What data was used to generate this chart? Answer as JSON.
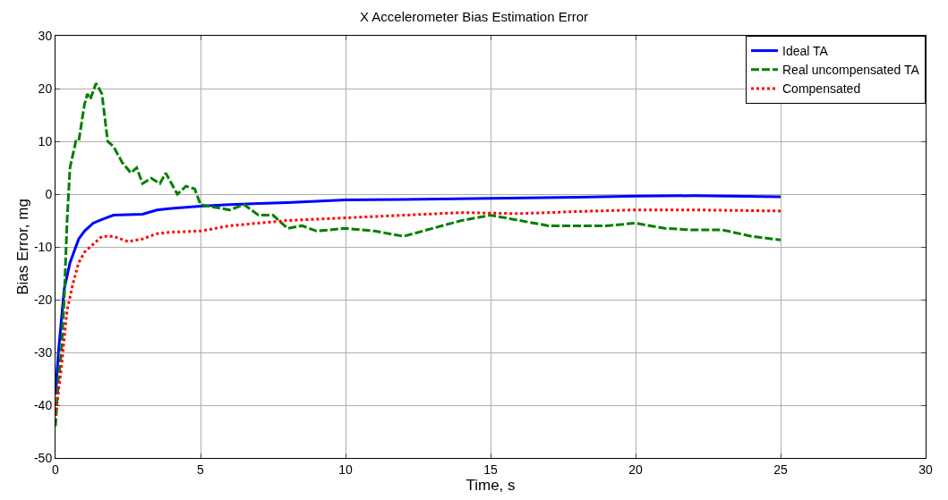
{
  "chart_data": {
    "type": "line",
    "title": "X Accelerometer Bias Estimation Error",
    "xlabel": "Time, s",
    "ylabel": "Bias Error, mg",
    "xlim": [
      0,
      30
    ],
    "xticks": [
      0,
      5,
      10,
      15,
      20,
      25,
      30
    ],
    "ylim": [
      -50,
      30
    ],
    "yticks": [
      -50,
      -40,
      -30,
      -20,
      -10,
      0,
      10,
      20,
      30
    ],
    "grid": true,
    "legend": "top right",
    "marker": "none",
    "series": [
      {
        "name": "Ideal TA",
        "color": "#0000ff",
        "line_style": "solid",
        "x": [
          0,
          0.1,
          0.3,
          0.5,
          0.8,
          1.0,
          1.3,
          1.6,
          2,
          3,
          3.5,
          4,
          5,
          6,
          7,
          8,
          10,
          12,
          15,
          18,
          20,
          22,
          25
        ],
        "values": [
          -38,
          -30,
          -18,
          -13,
          -8.5,
          -7,
          -5.5,
          -4.8,
          -4,
          -3.8,
          -3,
          -2.7,
          -2.3,
          -2,
          -1.8,
          -1.6,
          -1.1,
          -1,
          -0.8,
          -0.6,
          -0.4,
          -0.3,
          -0.5
        ]
      },
      {
        "name": "Real uncompensated TA",
        "color": "#008000",
        "line_style": "dashed",
        "x": [
          0,
          0.1,
          0.2,
          0.3,
          0.4,
          0.5,
          0.7,
          0.8,
          1,
          1.1,
          1.2,
          1.4,
          1.6,
          1.8,
          2,
          2.3,
          2.6,
          2.8,
          3,
          3.3,
          3.6,
          3.8,
          4.2,
          4.5,
          4.8,
          5,
          5.5,
          6,
          6.5,
          7,
          7.5,
          8,
          8.5,
          9,
          10,
          11,
          12,
          13,
          14,
          15,
          16,
          17,
          18,
          19,
          20,
          21,
          22,
          23,
          24,
          25
        ],
        "values": [
          -44,
          -35,
          -30,
          -20,
          -5,
          5,
          10,
          10,
          17,
          19,
          18,
          21,
          19,
          10,
          9,
          6,
          4,
          5,
          2,
          3,
          2,
          4,
          0,
          1.5,
          1,
          -2,
          -2.5,
          -3,
          -2,
          -4,
          -4,
          -6.5,
          -6,
          -7,
          -6.5,
          -7,
          -8,
          -6.5,
          -5,
          -4,
          -5,
          -6,
          -6,
          -6,
          -5.5,
          -6.5,
          -6.8,
          -6.8,
          -8,
          -8.7
        ]
      },
      {
        "name": "Compensated",
        "color": "#ff0000",
        "line_style": "dotted",
        "x": [
          0,
          0.2,
          0.4,
          0.6,
          0.8,
          1,
          1.3,
          1.6,
          2,
          2.5,
          3,
          3.5,
          4,
          5,
          6,
          7,
          8,
          10,
          12,
          14,
          16,
          18,
          20,
          22,
          25
        ],
        "values": [
          -42,
          -33,
          -22,
          -17,
          -13,
          -11,
          -9.5,
          -8,
          -8,
          -9,
          -8.5,
          -7.5,
          -7.2,
          -7,
          -6,
          -5.5,
          -5,
          -4.5,
          -4,
          -3.5,
          -3.7,
          -3.3,
          -3,
          -3,
          -3.2
        ]
      }
    ]
  }
}
